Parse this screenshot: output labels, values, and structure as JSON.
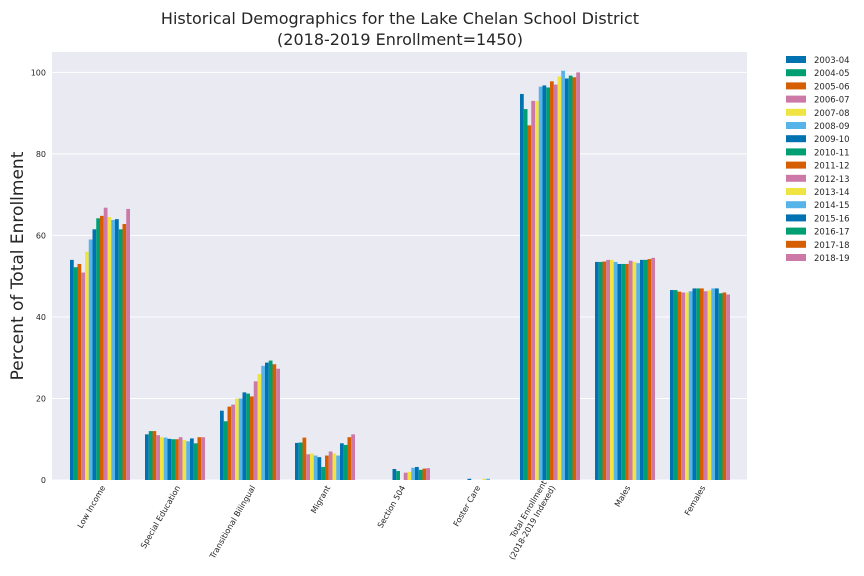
{
  "chart_data": {
    "type": "bar",
    "title_line1": "Historical Demographics for the Lake Chelan School District",
    "title_line2": "(2018-2019 Enrollment=1450)",
    "ylabel": "Percent of Total Enrollment",
    "ylim": [
      0,
      105
    ],
    "yticks": [
      0,
      20,
      40,
      60,
      80,
      100
    ],
    "grid": true,
    "legend_position": "outside-right",
    "categories": [
      [
        "Low Income"
      ],
      [
        "Special Education"
      ],
      [
        "Transitional Bilingual"
      ],
      [
        "Migrant"
      ],
      [
        "Section 504"
      ],
      [
        "Foster Care"
      ],
      [
        "Total Enrollment",
        "(2018-2019 Indexed)"
      ],
      [
        "Males"
      ],
      [
        "Females"
      ]
    ],
    "series": [
      {
        "name": "2003-04",
        "color": "#0072b2",
        "values": [
          54.0,
          11.2,
          17.0,
          9.1,
          0.0,
          0.0,
          94.7,
          53.5,
          46.6
        ]
      },
      {
        "name": "2004-05",
        "color": "#009e73",
        "values": [
          52.2,
          12.0,
          14.4,
          9.2,
          0.0,
          0.0,
          91.0,
          53.5,
          46.6
        ]
      },
      {
        "name": "2005-06",
        "color": "#d55e00",
        "values": [
          53.0,
          12.0,
          18.0,
          10.4,
          0.0,
          0.0,
          87.0,
          53.6,
          46.2
        ]
      },
      {
        "name": "2006-07",
        "color": "#cc79a7",
        "values": [
          50.9,
          11.0,
          18.5,
          6.3,
          0.0,
          0.0,
          93.0,
          54.0,
          46.0
        ]
      },
      {
        "name": "2007-08",
        "color": "#f0e442",
        "values": [
          56.0,
          10.5,
          20.0,
          6.5,
          0.0,
          0.0,
          93.0,
          54.0,
          46.0
        ]
      },
      {
        "name": "2008-09",
        "color": "#56b4e9",
        "values": [
          59.0,
          10.4,
          20.0,
          6.0,
          0.0,
          0.0,
          96.5,
          53.5,
          46.3
        ]
      },
      {
        "name": "2009-10",
        "color": "#0072b2",
        "values": [
          61.5,
          10.1,
          21.5,
          5.6,
          2.7,
          0.3,
          96.8,
          53.0,
          47.0
        ]
      },
      {
        "name": "2010-11",
        "color": "#009e73",
        "values": [
          64.2,
          10.0,
          21.2,
          3.2,
          2.2,
          0.0,
          96.3,
          53.0,
          47.0
        ]
      },
      {
        "name": "2011-12",
        "color": "#d55e00",
        "values": [
          64.8,
          10.0,
          20.5,
          6.0,
          0.0,
          0.0,
          97.8,
          53.0,
          47.0
        ]
      },
      {
        "name": "2012-13",
        "color": "#cc79a7",
        "values": [
          66.8,
          10.5,
          24.2,
          7.0,
          1.8,
          0.0,
          97.0,
          53.8,
          46.3
        ]
      },
      {
        "name": "2013-14",
        "color": "#f0e442",
        "values": [
          64.5,
          9.8,
          26.0,
          6.5,
          2.0,
          0.3,
          99.0,
          53.5,
          46.5
        ]
      },
      {
        "name": "2014-15",
        "color": "#56b4e9",
        "values": [
          63.8,
          9.5,
          28.0,
          6.0,
          3.0,
          0.3,
          100.4,
          53.2,
          47.0
        ]
      },
      {
        "name": "2015-16",
        "color": "#0072b2",
        "values": [
          64.0,
          10.2,
          28.8,
          9.0,
          3.2,
          0.0,
          98.5,
          54.0,
          47.0
        ]
      },
      {
        "name": "2016-17",
        "color": "#009e73",
        "values": [
          61.5,
          9.0,
          29.3,
          8.6,
          2.5,
          0.0,
          99.2,
          54.0,
          45.8
        ]
      },
      {
        "name": "2017-18",
        "color": "#d55e00",
        "values": [
          62.8,
          10.5,
          28.4,
          10.5,
          2.8,
          0.0,
          98.8,
          54.2,
          46.0
        ]
      },
      {
        "name": "2018-19",
        "color": "#cc79a7",
        "values": [
          66.5,
          10.5,
          27.3,
          11.2,
          2.9,
          0.0,
          100.0,
          54.5,
          45.5
        ]
      }
    ]
  }
}
